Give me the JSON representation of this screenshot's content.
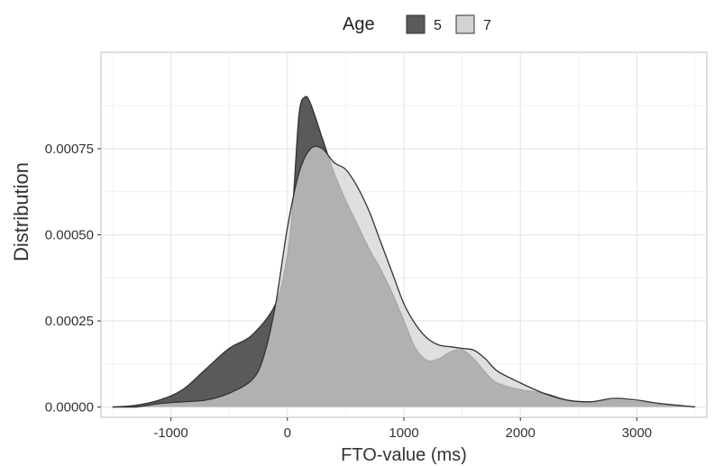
{
  "chart_data": {
    "type": "area",
    "xlabel": "FTO-value (ms)",
    "ylabel": "Distribution",
    "xlim": [
      -1600,
      3600
    ],
    "ylim": [
      -3e-05,
      0.00103
    ],
    "x_ticks": [
      -1000,
      0,
      1000,
      2000,
      3000
    ],
    "x_tick_labels": [
      "-1000",
      "0",
      "1000",
      "2000",
      "3000"
    ],
    "y_ticks": [
      0,
      0.00025,
      0.0005,
      0.00075
    ],
    "y_tick_labels": [
      "0.00000",
      "0.00025",
      "0.00050",
      "0.00075"
    ],
    "grid": true,
    "legend": {
      "title": "Age",
      "placement": "top",
      "entries": [
        {
          "label": "5",
          "color": "#5a5a5a"
        },
        {
          "label": "7",
          "color": "#d2d2d2"
        }
      ]
    },
    "series": [
      {
        "name": "5",
        "color": "#5a5a5a",
        "points": [
          [
            -1500,
            0.0
          ],
          [
            -1300,
            5e-06
          ],
          [
            -1100,
            2e-05
          ],
          [
            -900,
            5e-05
          ],
          [
            -700,
            0.00011
          ],
          [
            -500,
            0.00017
          ],
          [
            -300,
            0.00021
          ],
          [
            -100,
            0.0003
          ],
          [
            0,
            0.00044
          ],
          [
            50,
            0.0006
          ],
          [
            100,
            0.00085
          ],
          [
            150,
            0.0009
          ],
          [
            200,
            0.00088
          ],
          [
            300,
            0.00078
          ],
          [
            400,
            0.00068
          ],
          [
            500,
            0.0006
          ],
          [
            600,
            0.00053
          ],
          [
            700,
            0.00046
          ],
          [
            800,
            0.0004
          ],
          [
            900,
            0.00033
          ],
          [
            1000,
            0.00025
          ],
          [
            1100,
            0.00017
          ],
          [
            1200,
            0.000135
          ],
          [
            1300,
            0.00014
          ],
          [
            1400,
            0.00016
          ],
          [
            1500,
            0.000165
          ],
          [
            1600,
            0.00014
          ],
          [
            1700,
            0.0001
          ],
          [
            1800,
            7e-05
          ],
          [
            2000,
            5e-05
          ],
          [
            2200,
            4e-05
          ],
          [
            2400,
            2e-05
          ],
          [
            2600,
            1.5e-05
          ],
          [
            2800,
            2e-05
          ],
          [
            3000,
            1.5e-05
          ],
          [
            3200,
            1e-05
          ],
          [
            3500,
            0.0
          ]
        ]
      },
      {
        "name": "7",
        "color": "#d2d2d2",
        "points": [
          [
            -1500,
            0.0
          ],
          [
            -1300,
            0.0
          ],
          [
            -1100,
            1e-05
          ],
          [
            -900,
            1.5e-05
          ],
          [
            -700,
            2e-05
          ],
          [
            -500,
            4e-05
          ],
          [
            -300,
            8e-05
          ],
          [
            -200,
            0.00015
          ],
          [
            -100,
            0.0003
          ],
          [
            0,
            0.00052
          ],
          [
            100,
            0.00068
          ],
          [
            200,
            0.00075
          ],
          [
            300,
            0.00075
          ],
          [
            400,
            0.00071
          ],
          [
            500,
            0.00069
          ],
          [
            600,
            0.00064
          ],
          [
            700,
            0.00057
          ],
          [
            800,
            0.00048
          ],
          [
            900,
            0.00039
          ],
          [
            1000,
            0.0003
          ],
          [
            1100,
            0.00024
          ],
          [
            1200,
            0.0002
          ],
          [
            1300,
            0.00018
          ],
          [
            1400,
            0.000175
          ],
          [
            1500,
            0.00017
          ],
          [
            1600,
            0.000165
          ],
          [
            1700,
            0.00014
          ],
          [
            1800,
            0.000105
          ],
          [
            2000,
            7e-05
          ],
          [
            2200,
            4e-05
          ],
          [
            2400,
            2e-05
          ],
          [
            2600,
            1.5e-05
          ],
          [
            2800,
            2.5e-05
          ],
          [
            3000,
            2e-05
          ],
          [
            3200,
            1e-05
          ],
          [
            3500,
            0.0
          ]
        ]
      }
    ]
  }
}
